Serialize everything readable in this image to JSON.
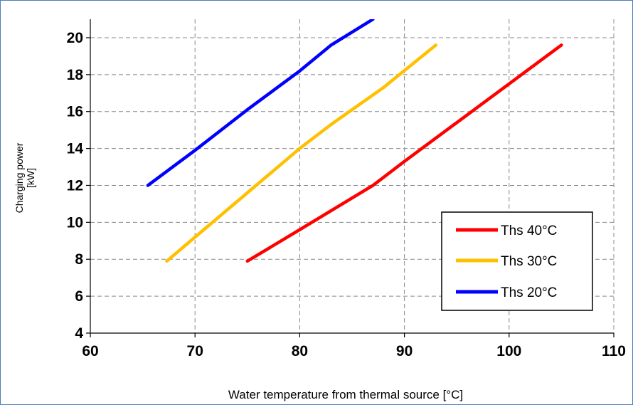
{
  "chart_data": {
    "type": "line",
    "title": "",
    "xlabel": "Water temperature from thermal source [°C]",
    "ylabel": [
      "Charging power",
      "[kW]"
    ],
    "xlim": [
      60,
      110
    ],
    "ylim": [
      4,
      21
    ],
    "xticks": [
      60,
      70,
      80,
      90,
      100,
      110
    ],
    "yticks": [
      4,
      6,
      8,
      10,
      12,
      14,
      16,
      18,
      20
    ],
    "grid": true,
    "legend_position": "bottom-right",
    "series": [
      {
        "name": "Ths 40°C",
        "color": "#ff0000",
        "x": [
          75,
          80,
          87,
          90,
          95,
          100,
          105
        ],
        "y": [
          7.9,
          9.6,
          12.0,
          13.3,
          15.4,
          17.5,
          19.6
        ]
      },
      {
        "name": "Ths 30°C",
        "color": "#ffc000",
        "x": [
          67.3,
          70,
          75,
          80,
          83,
          88,
          93
        ],
        "y": [
          7.9,
          9.2,
          11.6,
          14.0,
          15.3,
          17.3,
          19.6
        ]
      },
      {
        "name": "Ths 20°C",
        "color": "#0000ff",
        "x": [
          65.5,
          70,
          75,
          80,
          83,
          87
        ],
        "y": [
          12.0,
          13.9,
          16.1,
          18.2,
          19.6,
          21.0
        ]
      }
    ]
  }
}
